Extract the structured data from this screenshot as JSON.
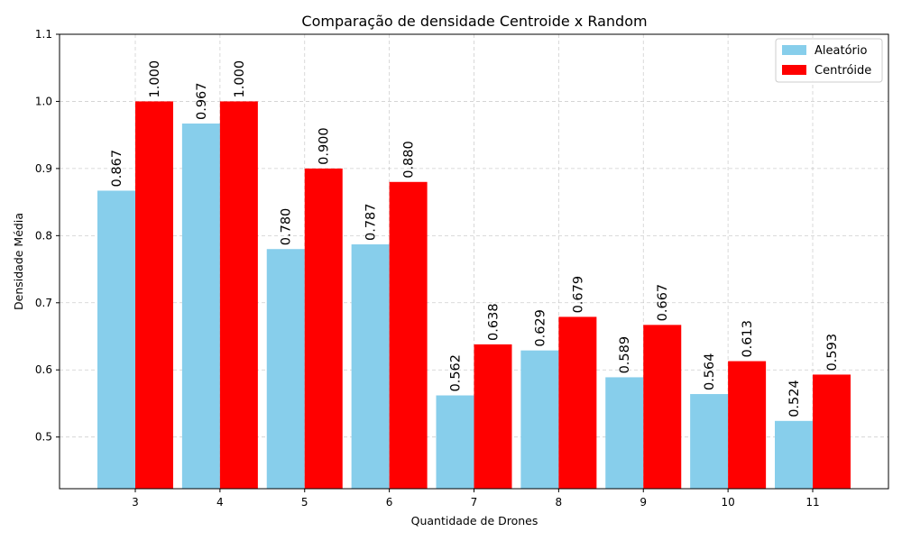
{
  "chart_data": {
    "type": "bar",
    "title": "Comparação de densidade Centroide x Random",
    "xlabel": "Quantidade de Drones",
    "ylabel": "Densidade Média",
    "categories": [
      "3",
      "4",
      "5",
      "6",
      "7",
      "8",
      "9",
      "10",
      "11"
    ],
    "series": [
      {
        "name": "Aleatório",
        "color": "#87CEEB",
        "values": [
          0.867,
          0.967,
          0.78,
          0.787,
          0.562,
          0.629,
          0.589,
          0.564,
          0.524
        ],
        "labels": [
          "0.867",
          "0.967",
          "0.780",
          "0.787",
          "0.562",
          "0.629",
          "0.589",
          "0.564",
          "0.524"
        ]
      },
      {
        "name": "Centróide",
        "color": "#FF0000",
        "values": [
          1.0,
          1.0,
          0.9,
          0.88,
          0.638,
          0.679,
          0.667,
          0.613,
          0.593
        ],
        "labels": [
          "1.000",
          "1.000",
          "0.900",
          "0.880",
          "0.638",
          "0.679",
          "0.667",
          "0.613",
          "0.593"
        ]
      }
    ],
    "ylim": [
      0.423,
      1.1
    ],
    "yticks": [
      "0.5",
      "0.6",
      "0.7",
      "0.8",
      "0.9",
      "1.0",
      "1.1"
    ],
    "grid": true,
    "legend_position": "top-right"
  }
}
